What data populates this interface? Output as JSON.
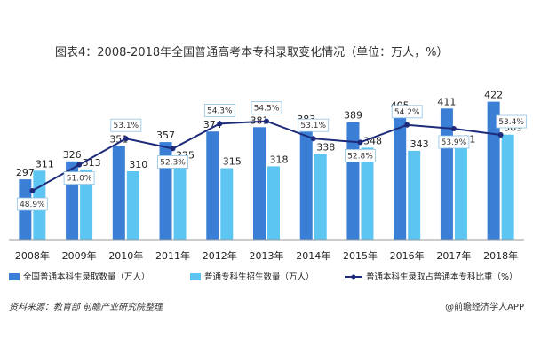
{
  "title": "图表4：2008-2018年全国普通高考本专科录取变化情况（单位：万人，%）",
  "source": {
    "label": "资料来源：",
    "text": "教育部  前瞻产业研究院整理"
  },
  "brand": "@前瞻经济学人APP",
  "chart_data": {
    "type": "bar",
    "categories": [
      "2008年",
      "2009年",
      "2010年",
      "2011年",
      "2012年",
      "2013年",
      "2014年",
      "2015年",
      "2016年",
      "2017年",
      "2018年"
    ],
    "series": [
      {
        "name": "全国普通本科生录取数量（万人）",
        "type": "bar",
        "color": "#3a7fd5",
        "values": [
          297,
          326,
          351,
          357,
          374,
          381,
          383,
          389,
          405,
          411,
          422
        ]
      },
      {
        "name": "普通专科生招生数量（万人）",
        "type": "bar",
        "color": "#5cc5f2",
        "values": [
          311,
          313,
          310,
          325,
          315,
          318,
          338,
          348,
          343,
          351,
          369
        ]
      },
      {
        "name": "普通本科生录取占普通本专科比重（%）",
        "type": "line",
        "color": "#1d2b7a",
        "values": [
          48.9,
          51.0,
          53.1,
          52.3,
          54.3,
          54.5,
          53.1,
          52.8,
          54.2,
          53.9,
          53.4
        ],
        "labels": [
          "48.9%",
          "51.0%",
          "53.1%",
          "52.3%",
          "54.3%",
          "54.5%",
          "53.1%",
          "52.8%",
          "54.2%",
          "53.9%",
          "53.4%"
        ]
      }
    ],
    "grid": false,
    "legend_position": "bottom"
  }
}
